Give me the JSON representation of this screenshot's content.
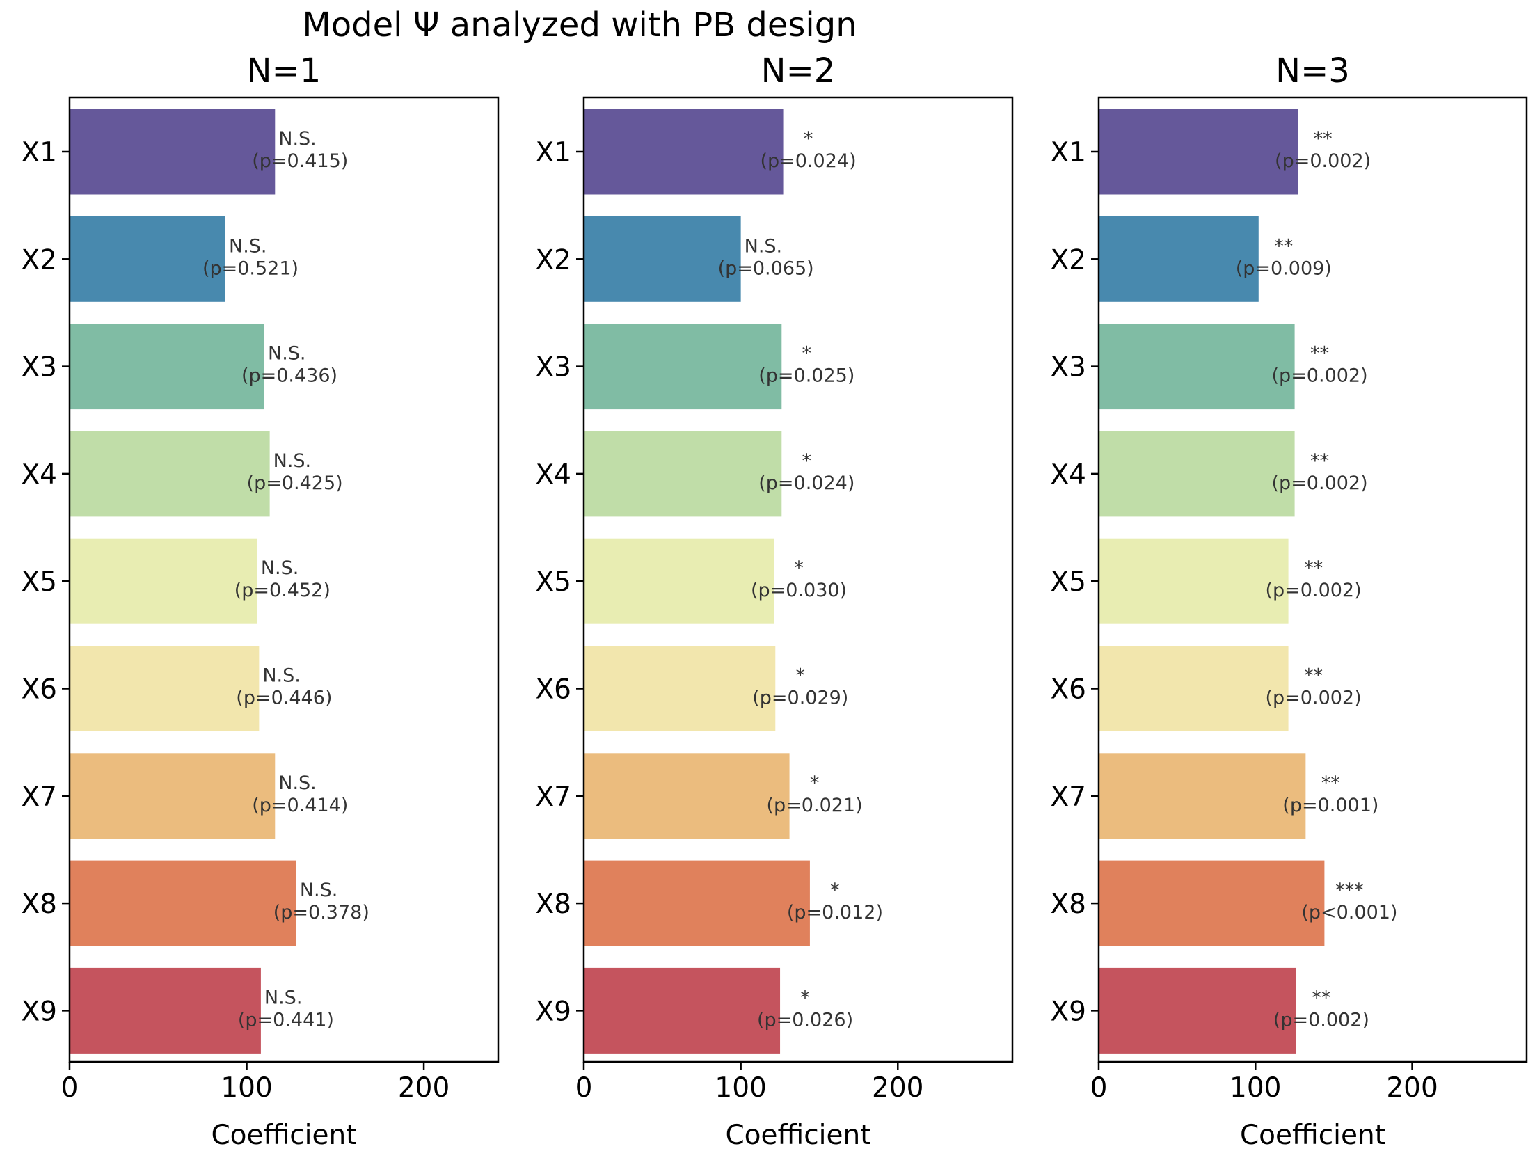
{
  "figure": {
    "title": "Model Ψ analyzed with PB design"
  },
  "chart_data": [
    {
      "type": "bar",
      "orientation": "horizontal",
      "title": "N=1",
      "xlabel": "Coefficient",
      "ylabel": "",
      "xlim": [
        0,
        242
      ],
      "xticks": [
        "0",
        "100",
        "200"
      ],
      "xtick_values": [
        0,
        100,
        200
      ],
      "categories": [
        "X1",
        "X2",
        "X3",
        "X4",
        "X5",
        "X6",
        "X7",
        "X8",
        "X9"
      ],
      "values": [
        116,
        88,
        110,
        113,
        106,
        107,
        116,
        128,
        108
      ],
      "significance": [
        "N.S.",
        "N.S.",
        "N.S.",
        "N.S.",
        "N.S.",
        "N.S.",
        "N.S.",
        "N.S.",
        "N.S."
      ],
      "p_labels": [
        "(p=0.415)",
        "(p=0.521)",
        "(p=0.436)",
        "(p=0.425)",
        "(p=0.452)",
        "(p=0.446)",
        "(p=0.414)",
        "(p=0.378)",
        "(p=0.441)"
      ],
      "grid": false,
      "legend": "none"
    },
    {
      "type": "bar",
      "orientation": "horizontal",
      "title": "N=2",
      "xlabel": "Coefficient",
      "ylabel": "",
      "xlim": [
        0,
        273
      ],
      "xticks": [
        "0",
        "100",
        "200"
      ],
      "xtick_values": [
        0,
        100,
        200
      ],
      "categories": [
        "X1",
        "X2",
        "X3",
        "X4",
        "X5",
        "X6",
        "X7",
        "X8",
        "X9"
      ],
      "values": [
        127,
        100,
        126,
        126,
        121,
        122,
        131,
        144,
        125
      ],
      "significance": [
        "*",
        "N.S.",
        "*",
        "*",
        "*",
        "*",
        "*",
        "*",
        "*"
      ],
      "p_labels": [
        "(p=0.024)",
        "(p=0.065)",
        "(p=0.025)",
        "(p=0.024)",
        "(p=0.030)",
        "(p=0.029)",
        "(p=0.021)",
        "(p=0.012)",
        "(p=0.026)"
      ],
      "grid": false,
      "legend": "none"
    },
    {
      "type": "bar",
      "orientation": "horizontal",
      "title": "N=3",
      "xlabel": "Coefficient",
      "ylabel": "",
      "xlim": [
        0,
        273
      ],
      "xticks": [
        "0",
        "100",
        "200"
      ],
      "xtick_values": [
        0,
        100,
        200
      ],
      "categories": [
        "X1",
        "X2",
        "X3",
        "X4",
        "X5",
        "X6",
        "X7",
        "X8",
        "X9"
      ],
      "values": [
        127,
        102,
        125,
        125,
        121,
        121,
        132,
        144,
        126
      ],
      "significance": [
        "**",
        "**",
        "**",
        "**",
        "**",
        "**",
        "**",
        "***",
        "**"
      ],
      "p_labels": [
        "(p=0.002)",
        "(p=0.009)",
        "(p=0.002)",
        "(p=0.002)",
        "(p=0.002)",
        "(p=0.002)",
        "(p=0.001)",
        "(p<0.001)",
        "(p=0.002)"
      ],
      "grid": false,
      "legend": "none"
    }
  ],
  "colors": {
    "bars": [
      "#65589a",
      "#4889ae",
      "#80bca4",
      "#c0dda8",
      "#e8edb2",
      "#f2e6ad",
      "#ebbc7e",
      "#e0815c",
      "#c5545e"
    ],
    "frame": "#000000",
    "annotation_text": "#333333"
  }
}
